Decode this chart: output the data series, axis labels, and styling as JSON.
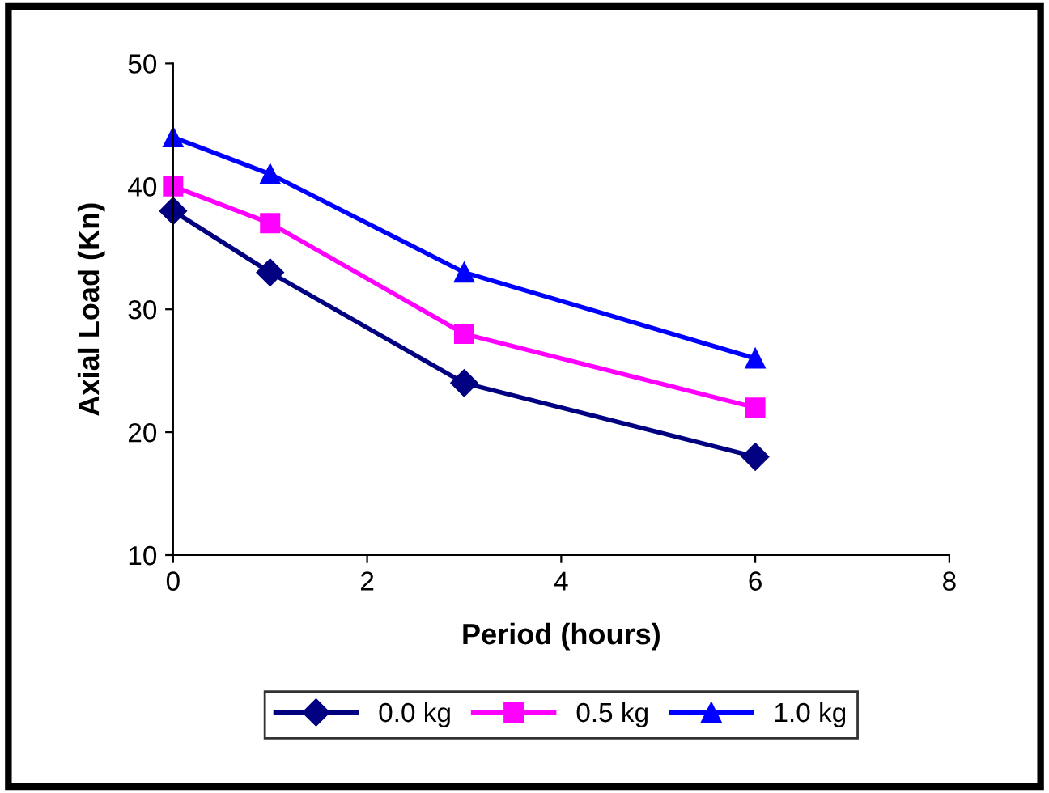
{
  "chart_data": {
    "type": "line",
    "xlabel": "Period (hours)",
    "ylabel": "Axial Load (Kn)",
    "x": [
      0,
      1,
      3,
      6
    ],
    "series": [
      {
        "name": "0.0 kg",
        "color": "#000080",
        "marker": "diamond",
        "values": [
          38,
          33,
          24,
          18
        ]
      },
      {
        "name": "0.5 kg",
        "color": "#ff00ff",
        "marker": "square",
        "values": [
          40,
          37,
          28,
          22
        ]
      },
      {
        "name": "1.0 kg",
        "color": "#0000ff",
        "marker": "triangle",
        "values": [
          44,
          41,
          33,
          26
        ]
      }
    ],
    "xlim": [
      0,
      8
    ],
    "xticks": [
      0,
      2,
      4,
      6,
      8
    ],
    "ylim": [
      10,
      50
    ],
    "yticks": [
      10,
      20,
      30,
      40,
      50
    ],
    "grid": false,
    "legend": "bottom",
    "line_style": "solid"
  }
}
